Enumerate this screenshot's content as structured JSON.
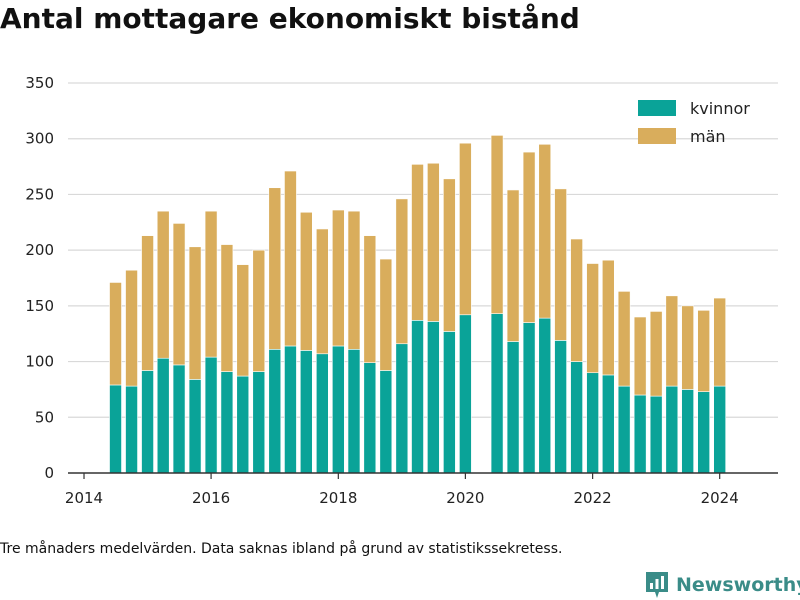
{
  "title": "Antal mottagare ekonomiskt bistånd",
  "footnote": "Tre månaders medelvärden. Data saknas ibland på grund av statistikssekretess.",
  "brand": {
    "name": "Newsworthy",
    "icon": "newsworthy-logo-icon",
    "color": "#3a8c88"
  },
  "colors": {
    "kvinnor": "#0aa398",
    "man": "#d9ad5c",
    "grid": "#d9d9d9",
    "axis": "#333333"
  },
  "chart_data": {
    "type": "bar",
    "stacked": true,
    "xlim": [
      "2013-10-01",
      "2024-12-01"
    ],
    "ylim": [
      0,
      350
    ],
    "yticks": [
      0,
      50,
      100,
      150,
      200,
      250,
      300,
      350
    ],
    "xticks": [
      "2014",
      "2016",
      "2018",
      "2020",
      "2022",
      "2024"
    ],
    "grid": true,
    "legend": {
      "position": "top-right"
    },
    "x": [
      "2014-07",
      "2014-10",
      "2015-01",
      "2015-04",
      "2015-07",
      "2015-10",
      "2016-01",
      "2016-04",
      "2016-07",
      "2016-10",
      "2017-01",
      "2017-04",
      "2017-07",
      "2017-10",
      "2018-01",
      "2018-04",
      "2018-07",
      "2018-10",
      "2019-01",
      "2019-04",
      "2019-07",
      "2019-10",
      "2020-01",
      "2020-04",
      "2020-07",
      "2020-10",
      "2021-01",
      "2021-04",
      "2021-07",
      "2021-10",
      "2022-01",
      "2022-04",
      "2022-07",
      "2022-10",
      "2023-01",
      "2023-04",
      "2023-07",
      "2023-10",
      "2024-01"
    ],
    "series": [
      {
        "name": "kvinnor",
        "color": "#0aa398",
        "values": [
          79,
          78,
          92,
          103,
          97,
          84,
          104,
          91,
          87,
          91,
          111,
          114,
          110,
          107,
          114,
          111,
          99,
          92,
          116,
          137,
          136,
          127,
          142,
          null,
          143,
          118,
          135,
          139,
          119,
          100,
          90,
          88,
          78,
          70,
          69,
          78,
          75,
          73,
          78
        ]
      },
      {
        "name": "män",
        "color": "#d9ad5c",
        "values": [
          92,
          104,
          121,
          132,
          127,
          119,
          131,
          114,
          100,
          109,
          145,
          157,
          124,
          112,
          122,
          124,
          114,
          100,
          130,
          140,
          142,
          137,
          154,
          null,
          160,
          136,
          153,
          156,
          136,
          110,
          98,
          103,
          85,
          70,
          76,
          81,
          75,
          73,
          79
        ]
      }
    ]
  }
}
